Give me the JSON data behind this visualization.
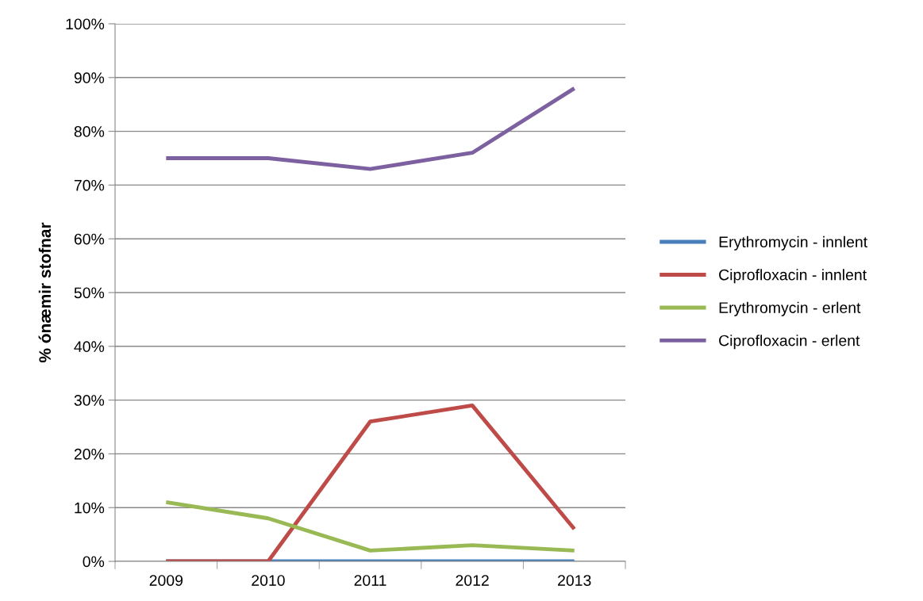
{
  "chart_data": {
    "type": "line",
    "ylabel": "% ónæmir stofnar",
    "categories": [
      "2009",
      "2010",
      "2011",
      "2012",
      "2013"
    ],
    "series": [
      {
        "name": "Erythromycin - innlent",
        "color": "#4a7ebb",
        "values": [
          0,
          0,
          0,
          0,
          0
        ]
      },
      {
        "name": "Ciprofloxacin - innlent",
        "color": "#be4b48",
        "values": [
          0,
          0,
          26,
          29,
          6
        ]
      },
      {
        "name": "Erythromycin - erlent",
        "color": "#98b954",
        "values": [
          11,
          8,
          2,
          3,
          2
        ]
      },
      {
        "name": "Ciprofloxacin - erlent",
        "color": "#7d60a0",
        "values": [
          75,
          75,
          73,
          76,
          88
        ]
      }
    ],
    "ylim": [
      0,
      100
    ],
    "yticks": [
      {
        "value": 0,
        "label": "0%"
      },
      {
        "value": 10,
        "label": "10%"
      },
      {
        "value": 20,
        "label": "20%"
      },
      {
        "value": 30,
        "label": "30%"
      },
      {
        "value": 40,
        "label": "40%"
      },
      {
        "value": 50,
        "label": "50%"
      },
      {
        "value": 60,
        "label": "60%"
      },
      {
        "value": 70,
        "label": "70%"
      },
      {
        "value": 80,
        "label": "80%"
      },
      {
        "value": 90,
        "label": "90%"
      },
      {
        "value": 100,
        "label": "100%"
      }
    ],
    "grid": "y",
    "legend": "right",
    "marker": "none",
    "line_style": "solid"
  }
}
